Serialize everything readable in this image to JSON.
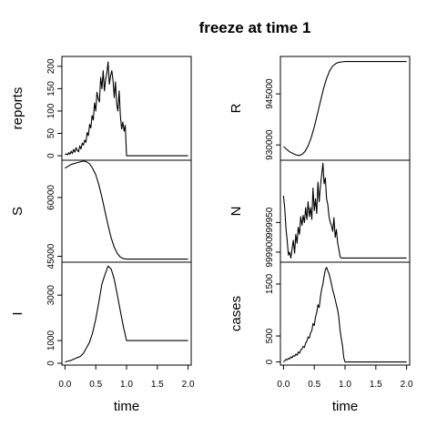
{
  "chart_data": {
    "type": "line",
    "title": "freeze at time 1",
    "xlabel": "time",
    "xlim": [
      -0.05,
      2.05
    ],
    "xticks": [
      0.0,
      0.5,
      1.0,
      1.5,
      2.0
    ],
    "xtick_labels": [
      "0.0",
      "0.5",
      "1.0",
      "1.5",
      "2.0"
    ],
    "columns": [
      {
        "panels": [
          {
            "ylabel": "reports",
            "ylim": [
              -10,
              222
            ],
            "yticks": [
              0,
              50,
              100,
              150,
              200
            ],
            "ytick_labels": [
              "0",
              "50",
              "100",
              "150",
              "200"
            ],
            "x": [
              0,
              0.02,
              0.04,
              0.06,
              0.08,
              0.1,
              0.12,
              0.14,
              0.16,
              0.18,
              0.2,
              0.22,
              0.24,
              0.26,
              0.28,
              0.3,
              0.32,
              0.34,
              0.36,
              0.38,
              0.4,
              0.42,
              0.44,
              0.46,
              0.48,
              0.5,
              0.52,
              0.54,
              0.56,
              0.58,
              0.6,
              0.62,
              0.64,
              0.66,
              0.68,
              0.7,
              0.72,
              0.74,
              0.76,
              0.78,
              0.8,
              0.82,
              0.84,
              0.86,
              0.88,
              0.9,
              0.92,
              0.94,
              0.96,
              0.98,
              1.0,
              1.5,
              2.0
            ],
            "y": [
              2,
              4,
              2,
              7,
              3,
              10,
              5,
              14,
              8,
              18,
              12,
              9,
              22,
              15,
              28,
              24,
              35,
              30,
              52,
              45,
              70,
              62,
              90,
              80,
              118,
              100,
              142,
              128,
              120,
              175,
              150,
              190,
              145,
              170,
              185,
              210,
              160,
              178,
              190,
              170,
              130,
              165,
              115,
              100,
              145,
              90,
              60,
              75,
              55,
              68,
              0,
              0,
              0
            ]
          },
          {
            "ylabel": "S",
            "ylim": [
              43500,
              69500
            ],
            "yticks": [
              45000,
              60000
            ],
            "ytick_labels": [
              "45000",
              "60000"
            ],
            "x": [
              0,
              0.1,
              0.2,
              0.3,
              0.35,
              0.4,
              0.45,
              0.5,
              0.55,
              0.6,
              0.65,
              0.7,
              0.75,
              0.8,
              0.85,
              0.9,
              0.95,
              1.0,
              1.5,
              2.0
            ],
            "y": [
              67500,
              68400,
              68900,
              69300,
              69100,
              68600,
              67400,
              65800,
              63200,
              60000,
              56500,
              52900,
              49700,
              47300,
              45700,
              44800,
              44400,
              44300,
              44300,
              44300
            ]
          },
          {
            "ylabel": "I",
            "ylim": [
              -80,
              4450
            ],
            "yticks": [
              0,
              1000,
              3000
            ],
            "ytick_labels": [
              "0",
              "1000",
              "3000"
            ],
            "x": [
              0,
              0.1,
              0.2,
              0.25,
              0.3,
              0.35,
              0.4,
              0.45,
              0.5,
              0.55,
              0.6,
              0.65,
              0.7,
              0.75,
              0.8,
              0.85,
              0.9,
              0.95,
              1.0,
              1.5,
              2.0
            ],
            "y": [
              60,
              130,
              250,
              300,
              440,
              680,
              930,
              1350,
              1950,
              2700,
              3500,
              3900,
              4280,
              4150,
              3700,
              3000,
              2300,
              1600,
              1000,
              1000,
              1000
            ]
          }
        ]
      },
      {
        "panels": [
          {
            "ylabel": "R",
            "ylim": [
              925500,
              956000
            ],
            "yticks": [
              930000,
              945000
            ],
            "ytick_labels": [
              "930000",
              "945000"
            ],
            "x": [
              0,
              0.05,
              0.1,
              0.15,
              0.2,
              0.25,
              0.3,
              0.35,
              0.4,
              0.45,
              0.5,
              0.55,
              0.6,
              0.65,
              0.7,
              0.75,
              0.8,
              0.85,
              0.9,
              0.95,
              1.0,
              1.5,
              2.0
            ],
            "y": [
              929500,
              928700,
              928000,
              927500,
              927100,
              926900,
              927200,
              928100,
              929700,
              932100,
              935300,
              939000,
              942800,
              946500,
              949500,
              951800,
              953200,
              953900,
              954300,
              954400,
              954500,
              954500,
              954500
            ]
          },
          {
            "ylabel": "N",
            "ylim": [
              999883,
              1000055
            ],
            "yticks": [
              999900,
              999950
            ],
            "ytick_labels": [
              "999900",
              "999950"
            ],
            "x": [
              0,
              0.02,
              0.04,
              0.06,
              0.08,
              0.1,
              0.12,
              0.14,
              0.16,
              0.18,
              0.2,
              0.22,
              0.24,
              0.26,
              0.28,
              0.3,
              0.32,
              0.34,
              0.36,
              0.38,
              0.4,
              0.42,
              0.44,
              0.46,
              0.48,
              0.5,
              0.52,
              0.54,
              0.56,
              0.58,
              0.6,
              0.62,
              0.64,
              0.66,
              0.68,
              0.7,
              0.72,
              0.74,
              0.76,
              0.78,
              0.8,
              0.82,
              0.84,
              0.86,
              0.88,
              0.9,
              0.92,
              0.94,
              0.96,
              0.98,
              1.0,
              1.5,
              2.0
            ],
            "y": [
              999995,
              999975,
              999940,
              999920,
              999895,
              999900,
              999890,
              999905,
              999920,
              999898,
              999930,
              999915,
              999942,
              999930,
              999960,
              999945,
              999962,
              999950,
              999975,
              999955,
              999985,
              999960,
              999975,
              999955,
              1000008,
              999970,
              999990,
              999965,
              1000018,
              999985,
              1000012,
              1000030,
              1000050,
              1000015,
              1000025,
              999990,
              999980,
              999960,
              999950,
              999945,
              999935,
              999958,
              999925,
              999938,
              999915,
              999905,
              999892,
              999890,
              999890,
              999890,
              999890,
              999890,
              999890
            ]
          },
          {
            "ylabel": "cases",
            "ylim": [
              -60,
              1920
            ],
            "yticks": [
              0,
              500,
              1500
            ],
            "ytick_labels": [
              "0",
              "500",
              "1500"
            ],
            "x": [
              0,
              0.02,
              0.04,
              0.06,
              0.08,
              0.1,
              0.12,
              0.14,
              0.16,
              0.18,
              0.2,
              0.22,
              0.24,
              0.26,
              0.28,
              0.3,
              0.32,
              0.34,
              0.36,
              0.38,
              0.4,
              0.42,
              0.44,
              0.46,
              0.48,
              0.5,
              0.52,
              0.54,
              0.56,
              0.58,
              0.6,
              0.62,
              0.64,
              0.66,
              0.68,
              0.7,
              0.72,
              0.74,
              0.76,
              0.78,
              0.8,
              0.82,
              0.84,
              0.86,
              0.88,
              0.9,
              0.92,
              0.94,
              0.96,
              0.98,
              1.0,
              1.5,
              2.0
            ],
            "y": [
              0,
              20,
              50,
              40,
              70,
              60,
              100,
              80,
              120,
              110,
              150,
              130,
              190,
              170,
              230,
              250,
              300,
              280,
              360,
              400,
              480,
              460,
              560,
              600,
              740,
              700,
              860,
              950,
              1100,
              1050,
              1250,
              1400,
              1500,
              1650,
              1780,
              1820,
              1750,
              1700,
              1600,
              1500,
              1380,
              1300,
              1200,
              1100,
              1000,
              850,
              600,
              450,
              300,
              80,
              0,
              0,
              0
            ]
          }
        ]
      }
    ]
  }
}
